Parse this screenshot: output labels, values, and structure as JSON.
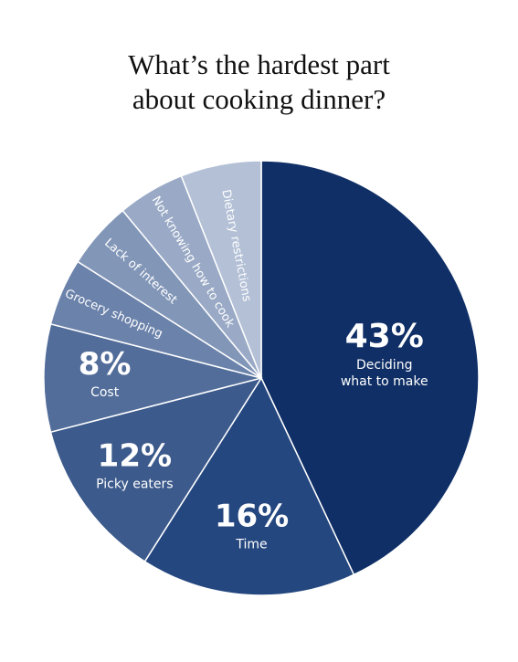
{
  "title_line1": "What’s the hardest part",
  "title_line2": "about cooking dinner?",
  "chart_data": {
    "type": "pie",
    "slices": [
      {
        "label": "Deciding what to make",
        "label_lines": [
          "Deciding",
          "what to make"
        ],
        "value": 43,
        "value_label": "43%",
        "color": "#0f2f66"
      },
      {
        "label": "Time",
        "label_lines": [
          "Time"
        ],
        "value": 16,
        "value_label": "16%",
        "color": "#25477f"
      },
      {
        "label": "Picky eaters",
        "label_lines": [
          "Picky eaters"
        ],
        "value": 12,
        "value_label": "12%",
        "color": "#3c5a8c"
      },
      {
        "label": "Cost",
        "label_lines": [
          "Cost"
        ],
        "value": 8,
        "value_label": "8%",
        "color": "#526d9a"
      },
      {
        "label": "Grocery shopping",
        "label_lines": [
          "Grocery shopping"
        ],
        "value": 5,
        "color": "#6b82aa"
      },
      {
        "label": "Lack of interest",
        "label_lines": [
          "Lack of interest"
        ],
        "value": 5,
        "color": "#8296b8"
      },
      {
        "label": "Not knowing how to cook",
        "label_lines": [
          "Not knowing how to cook"
        ],
        "value": 5,
        "color": "#9aaac6"
      },
      {
        "label": "Dietary restrictions",
        "label_lines": [
          "Dietary restrictions"
        ],
        "value": 6,
        "color": "#b3c0d6"
      }
    ]
  }
}
